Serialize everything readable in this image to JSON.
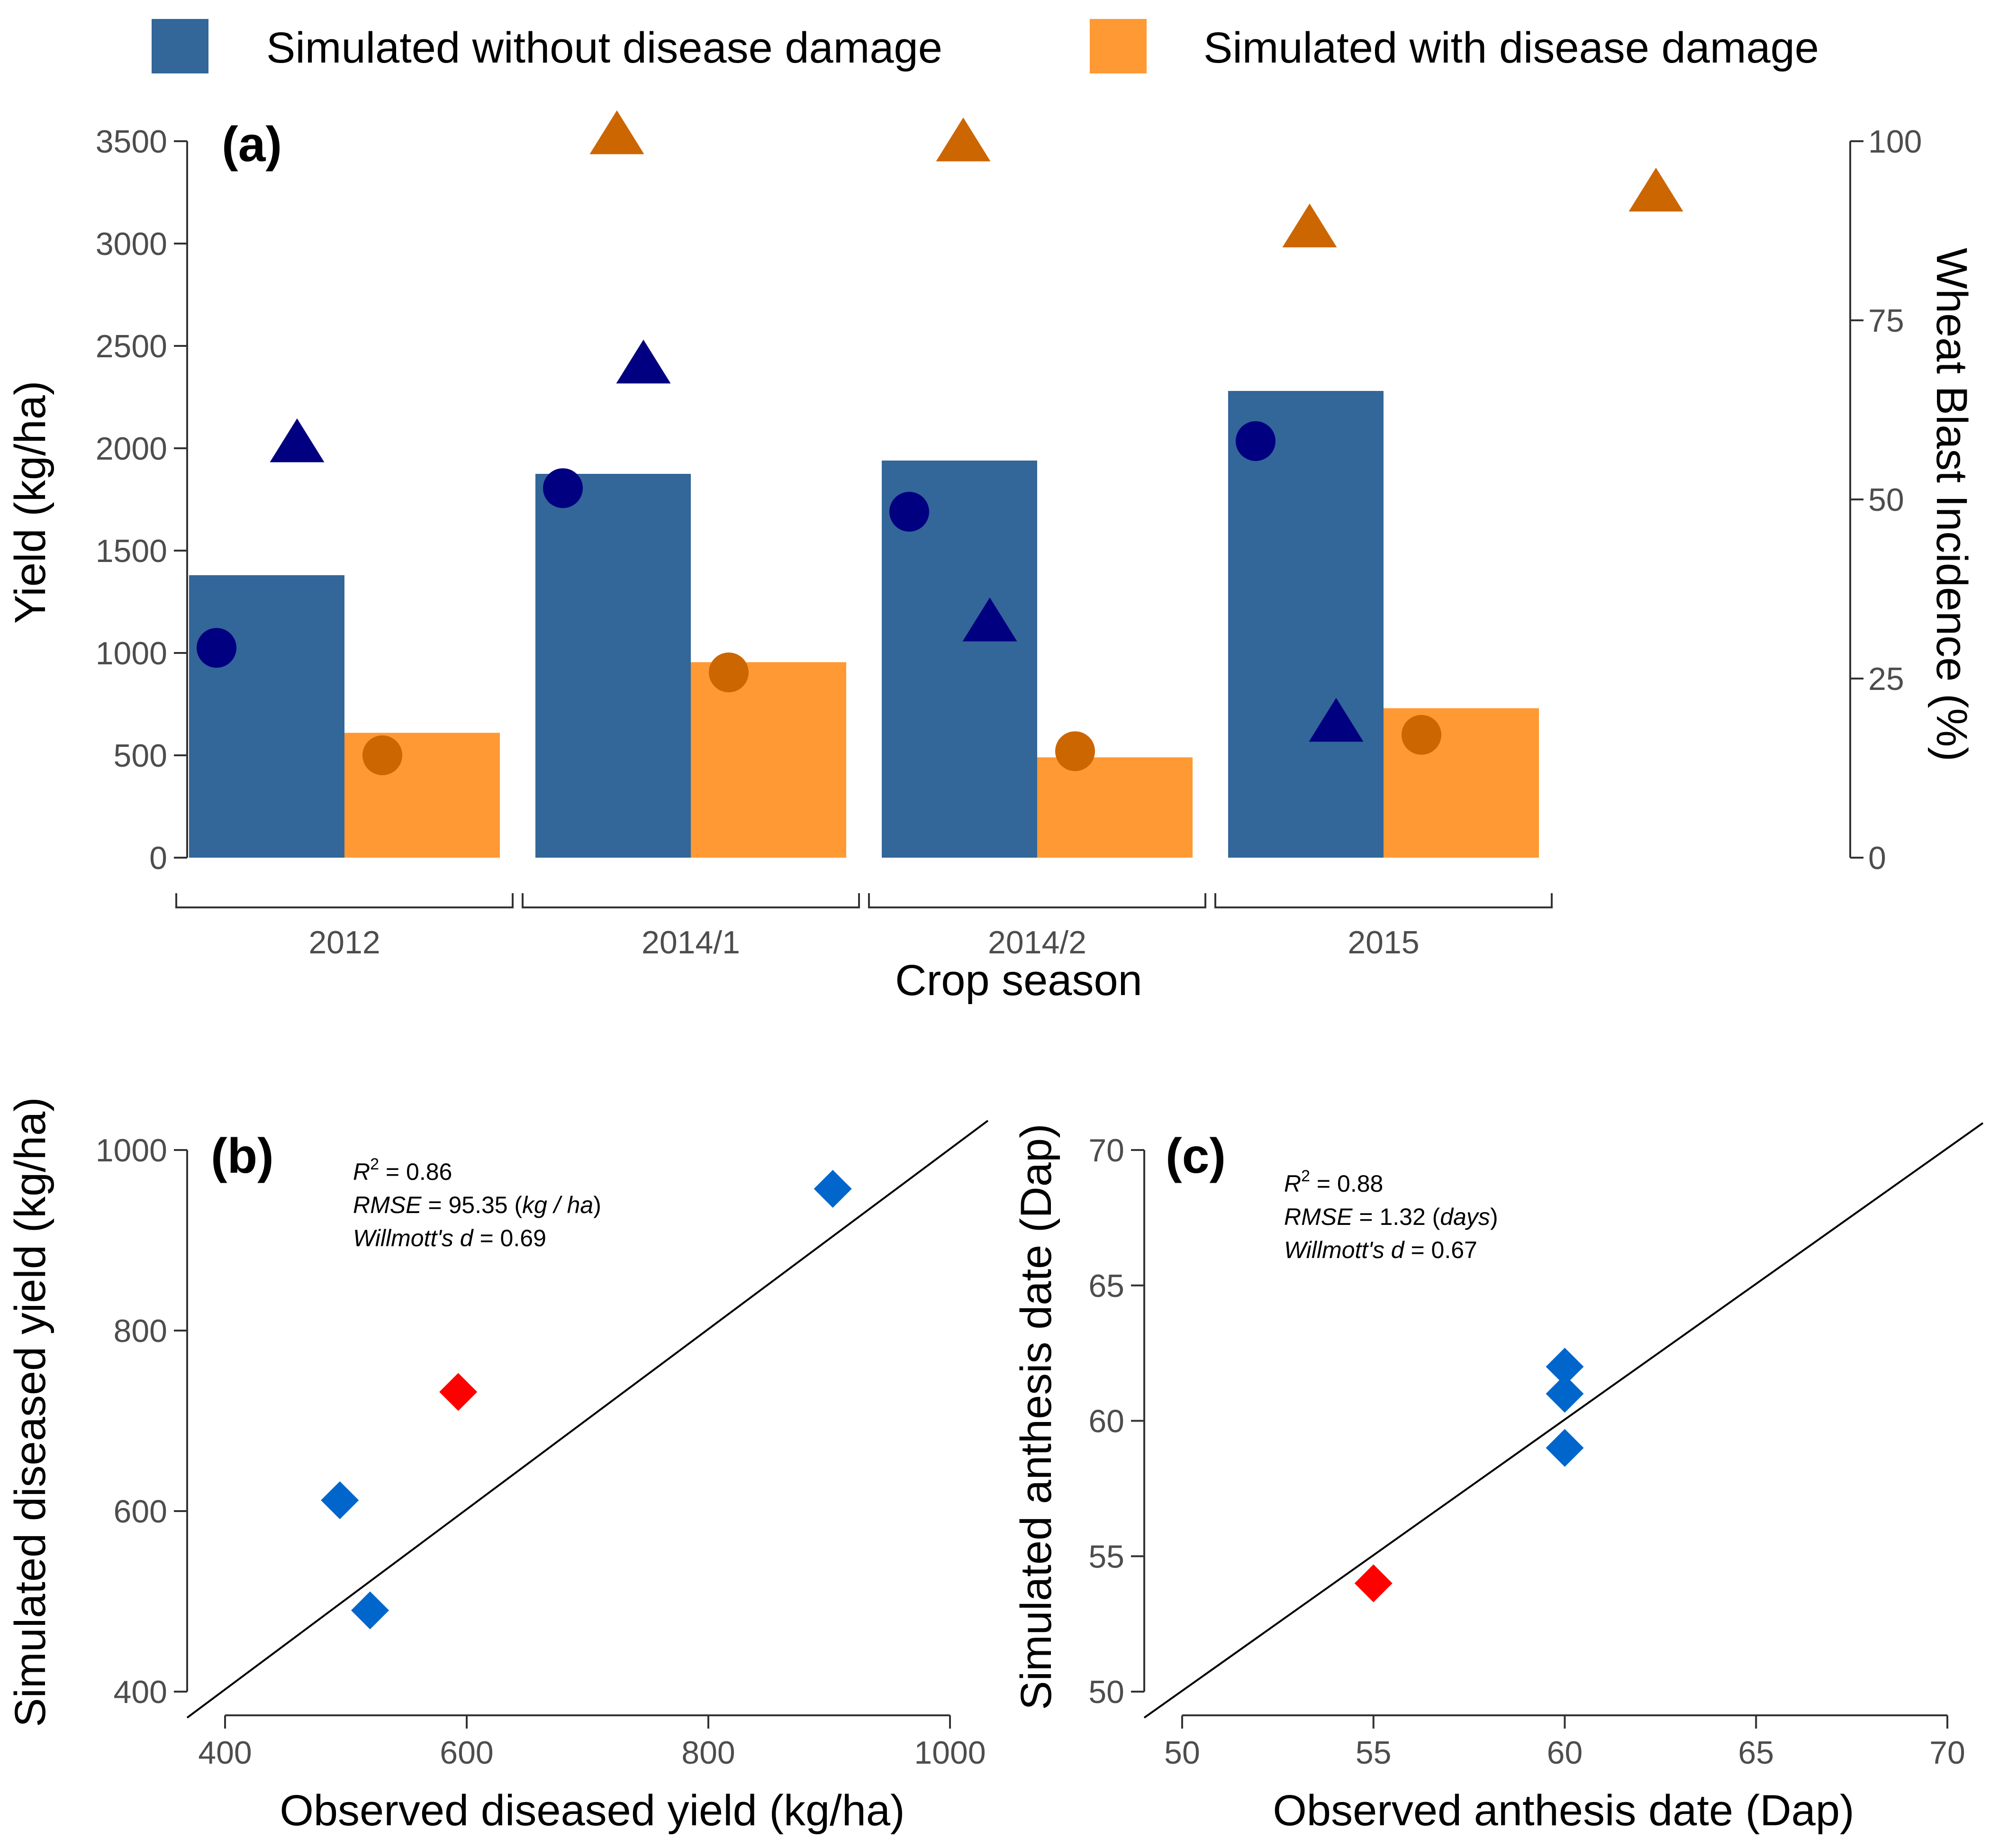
{
  "colors": {
    "without_bar": "#336699",
    "with_bar": "#ff9933",
    "without_marker": "#000080",
    "with_marker": "#cc6600",
    "scatter_normal": "#0066cc",
    "scatter_highlight": "#ff0000",
    "axis": "#333333",
    "tick_text": "#4d4d4d"
  },
  "legend": {
    "items": [
      {
        "label": "Simulated without disease damage",
        "color": "#336699"
      },
      {
        "label": "Simulated with disease damage",
        "color": "#ff9933"
      }
    ],
    "placement": "top"
  },
  "chart_data": [
    {
      "panel": "(a)",
      "type": "bar",
      "xlabel": "Crop season",
      "ylabel": "Yield (kg/ha)",
      "y2label": "Wheat Blast Incidence (%)",
      "categories": [
        "2012",
        "2014/1",
        "2014/2",
        "2015"
      ],
      "ylim": [
        0,
        3500
      ],
      "yticks": [
        0,
        500,
        1000,
        1500,
        2000,
        2500,
        3000,
        3500
      ],
      "y2lim": [
        0,
        100
      ],
      "y2ticks": [
        0,
        25,
        50,
        75,
        100
      ],
      "series": [
        {
          "name": "Simulated without disease damage",
          "values": [
            1380,
            1875,
            1940,
            2280
          ]
        },
        {
          "name": "Simulated with disease damage",
          "values": [
            610,
            955,
            490,
            730
          ]
        }
      ],
      "observed_yield": {
        "without": [
          1025,
          1805,
          1690,
          2035
        ],
        "with": [
          500,
          905,
          520,
          600
        ]
      },
      "blast_incidence": {
        "without": [
          58,
          69,
          33,
          19
        ],
        "with": [
          101,
          100,
          88,
          93
        ]
      }
    },
    {
      "panel": "(b)",
      "type": "scatter",
      "xlabel": "Observed diseased yield (kg/ha)",
      "ylabel": "Simulated diseased yield (kg/ha)",
      "xlim": [
        400,
        1000
      ],
      "ylim": [
        400,
        1000
      ],
      "xticks": [
        400,
        600,
        800,
        1000
      ],
      "yticks": [
        400,
        600,
        800,
        1000
      ],
      "points": [
        {
          "x": 495,
          "y": 612,
          "highlight": false
        },
        {
          "x": 520,
          "y": 490,
          "highlight": false
        },
        {
          "x": 593,
          "y": 732,
          "highlight": true
        },
        {
          "x": 903,
          "y": 957,
          "highlight": false
        }
      ],
      "stats": {
        "r2_label": "R",
        "r2_sup": "2",
        "r2_eq": " =",
        "r2_value": "0.86",
        "rmse_label": "RMSE",
        "rmse_eq": " =",
        "rmse_value": "95.35",
        "rmse_unit": "kg / ha",
        "willmott_label": "Willmott's d",
        "willmott_eq": " =",
        "willmott_value": "0.69"
      }
    },
    {
      "panel": "(c)",
      "type": "scatter",
      "xlabel": "Observed anthesis date (Dap)",
      "ylabel": "Simulated anthesis date (Dap)",
      "xlim": [
        50,
        70
      ],
      "ylim": [
        50,
        70
      ],
      "xticks": [
        50,
        55,
        60,
        65,
        70
      ],
      "yticks": [
        50,
        55,
        60,
        65,
        70
      ],
      "points": [
        {
          "x": 55,
          "y": 54,
          "highlight": true
        },
        {
          "x": 60,
          "y": 59,
          "highlight": false
        },
        {
          "x": 60,
          "y": 61,
          "highlight": false
        },
        {
          "x": 60,
          "y": 62,
          "highlight": false
        }
      ],
      "stats": {
        "r2_label": "R",
        "r2_sup": "2",
        "r2_eq": " =",
        "r2_value": "0.88",
        "rmse_label": "RMSE",
        "rmse_eq": " =",
        "rmse_value": "1.32",
        "rmse_unit": "days",
        "willmott_label": "Willmott's d",
        "willmott_eq": " =",
        "willmott_value": "0.67"
      }
    }
  ]
}
